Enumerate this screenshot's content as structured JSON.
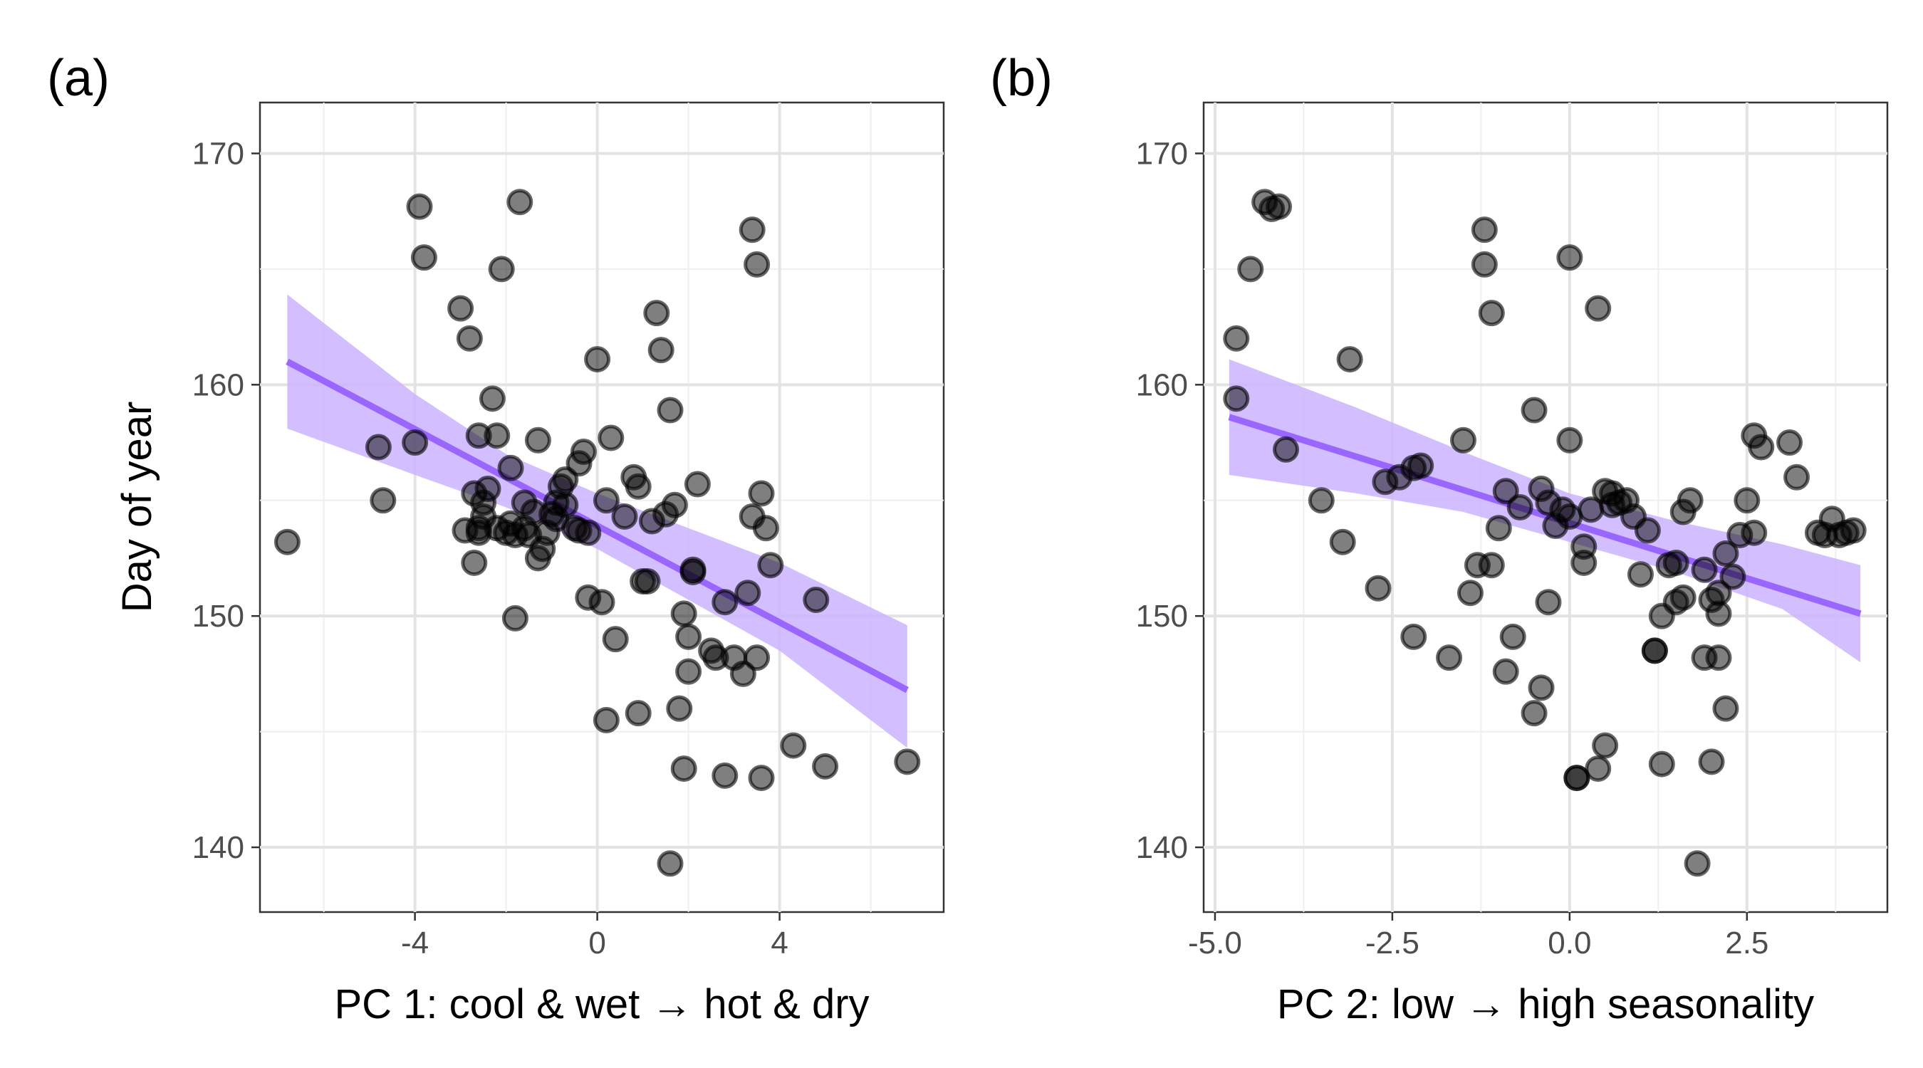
{
  "chart_data": [
    {
      "type": "scatter",
      "panel_label": "(a)",
      "xlabel": "PC 1: cool & wet → hot & dry",
      "ylabel": "Day of year",
      "xlim": [
        -7.4,
        7.6
      ],
      "ylim": [
        137.2,
        172.2
      ],
      "x_ticks": [
        -4,
        0,
        4
      ],
      "x_tick_labels": [
        "-4",
        "0",
        "4"
      ],
      "y_ticks": [
        140,
        150,
        160,
        170
      ],
      "y_tick_labels": [
        "140",
        "150",
        "160",
        "170"
      ],
      "grid": true,
      "colors": {
        "points": "#000000",
        "fit_line": "#9966ff",
        "ribbon": "#cbb3ff"
      },
      "fit": {
        "x": [
          -6.8,
          6.8
        ],
        "y": [
          161.0,
          146.8
        ]
      },
      "ribbon": {
        "x": [
          -6.8,
          -4,
          -2,
          0,
          2,
          4,
          6.8
        ],
        "lower": [
          158.1,
          156.1,
          154.7,
          152.9,
          150.7,
          148.5,
          144.3
        ],
        "upper": [
          163.9,
          159.6,
          157.0,
          155.3,
          153.8,
          152.3,
          149.6
        ]
      },
      "points": {
        "x": [
          -6.8,
          -4.8,
          -4.7,
          -4.0,
          -3.8,
          -3.9,
          -3.0,
          -2.8,
          -2.7,
          -2.6,
          -2.6,
          -2.5,
          -2.4,
          -2.3,
          -2.1,
          -1.9,
          -1.8,
          -1.7,
          -1.5,
          -1.3,
          -1.2,
          -1.0,
          -0.9,
          -0.8,
          -0.7,
          -0.5,
          -0.4,
          -0.3,
          -0.2,
          0.0,
          0.1,
          0.3,
          0.6,
          0.8,
          0.9,
          1.1,
          1.3,
          1.4,
          1.5,
          1.6,
          1.8,
          1.9,
          2.0,
          2.1,
          2.2,
          2.5,
          2.8,
          3.2,
          3.4,
          3.5,
          3.6,
          3.7,
          3.8,
          4.3,
          4.8,
          5.0,
          6.8,
          -2.6,
          -2.5,
          -1.9,
          -1.6,
          -1.3,
          -0.9,
          -2.9,
          -2.7,
          -2.2,
          -2.0,
          -1.8,
          -1.6,
          -1.4,
          -1.1,
          -0.7,
          -0.4,
          0.2,
          1.2,
          1.9,
          2.0,
          2.1,
          2.6,
          3.0,
          3.3,
          3.4,
          3.5,
          3.6,
          0.9,
          1.0,
          1.6,
          1.7,
          2.8,
          -0.2,
          0.4,
          0.2,
          -2.2
        ],
        "y": [
          153.2,
          157.3,
          155.0,
          157.5,
          165.5,
          167.7,
          163.3,
          162.0,
          152.3,
          153.8,
          157.8,
          154.9,
          155.5,
          159.4,
          165.0,
          156.4,
          149.9,
          167.9,
          153.5,
          157.6,
          152.9,
          154.4,
          154.9,
          155.6,
          155.9,
          153.8,
          156.6,
          157.1,
          153.6,
          161.1,
          150.6,
          157.7,
          154.3,
          156.0,
          145.8,
          151.5,
          163.1,
          161.5,
          154.4,
          158.9,
          146.0,
          143.4,
          149.1,
          152.0,
          155.7,
          148.5,
          143.1,
          147.5,
          166.7,
          165.2,
          155.3,
          153.8,
          152.2,
          144.4,
          150.7,
          143.5,
          143.7,
          153.6,
          154.3,
          154.0,
          153.8,
          152.5,
          154.2,
          153.7,
          155.3,
          153.8,
          153.6,
          153.5,
          154.9,
          154.5,
          153.6,
          154.8,
          153.7,
          155.0,
          154.1,
          150.1,
          147.6,
          151.9,
          148.2,
          148.2,
          151.0,
          154.3,
          148.2,
          143.0,
          155.6,
          151.5,
          139.3,
          154.8,
          150.6,
          150.8,
          149.0,
          145.5,
          157.8
        ]
      }
    },
    {
      "type": "scatter",
      "panel_label": "(b)",
      "xlabel": "PC 2: low → high seasonality",
      "ylabel": "",
      "xlim": [
        -5.16,
        4.48
      ],
      "ylim": [
        137.2,
        172.2
      ],
      "x_ticks": [
        -5.0,
        -2.5,
        0.0,
        2.5
      ],
      "x_tick_labels": [
        "-5.0",
        "-2.5",
        "0.0",
        "2.5"
      ],
      "y_ticks": [
        140,
        150,
        160,
        170
      ],
      "y_tick_labels": [
        "140",
        "150",
        "160",
        "170"
      ],
      "grid": true,
      "colors": {
        "points": "#000000",
        "fit_line": "#9966ff",
        "ribbon": "#cbb3ff"
      },
      "fit": {
        "x": [
          -4.8,
          4.1
        ],
        "y": [
          158.6,
          150.1
        ]
      },
      "ribbon": {
        "x": [
          -4.8,
          -3,
          -1.5,
          0,
          1.5,
          3,
          4.1
        ],
        "lower": [
          156.1,
          155.3,
          154.5,
          153.2,
          151.9,
          150.3,
          148.0
        ],
        "upper": [
          161.1,
          159.0,
          157.1,
          155.3,
          154.1,
          153.1,
          152.2
        ]
      },
      "points": {
        "x": [
          -4.3,
          -4.2,
          -4.1,
          -4.5,
          -4.7,
          -4.7,
          -4.0,
          -3.5,
          -3.2,
          -3.1,
          -2.7,
          -2.4,
          -2.6,
          -2.2,
          -2.1,
          -1.7,
          -1.5,
          -1.4,
          -1.3,
          -1.2,
          -1.2,
          -1.1,
          -1.1,
          -1.0,
          -0.9,
          -0.9,
          -0.8,
          -0.5,
          -0.4,
          -0.7,
          -0.5,
          -0.4,
          -0.3,
          -0.2,
          -0.1,
          0.0,
          0.0,
          0.1,
          0.1,
          0.2,
          0.4,
          0.4,
          0.5,
          0.6,
          0.7,
          0.8,
          0.9,
          1.0,
          1.1,
          1.2,
          1.3,
          1.3,
          1.4,
          1.5,
          1.6,
          1.7,
          1.8,
          1.9,
          2.0,
          2.1,
          2.1,
          2.2,
          2.3,
          2.4,
          2.5,
          2.6,
          2.6,
          2.7,
          3.1,
          3.2,
          3.5,
          3.6,
          3.7,
          3.8,
          3.9,
          4.0,
          1.6,
          2.0,
          1.2,
          1.9,
          -2.2,
          0.2,
          0.3,
          -0.3,
          0.0,
          0.5,
          2.1,
          2.2,
          1.5,
          0.6
        ],
        "y": [
          167.9,
          167.6,
          167.7,
          165.0,
          162.0,
          159.4,
          157.2,
          155.0,
          153.2,
          161.1,
          151.2,
          156.0,
          155.8,
          156.4,
          156.5,
          148.2,
          157.6,
          151.0,
          152.2,
          165.2,
          166.7,
          152.2,
          163.1,
          153.8,
          155.4,
          147.6,
          149.1,
          145.8,
          146.9,
          154.7,
          158.9,
          155.5,
          150.6,
          153.9,
          154.6,
          157.6,
          165.5,
          143.0,
          143.0,
          152.3,
          143.4,
          163.3,
          144.4,
          155.3,
          154.9,
          155.0,
          154.3,
          151.8,
          153.7,
          148.5,
          150.0,
          143.6,
          152.2,
          150.6,
          154.5,
          155.0,
          139.3,
          152.0,
          143.7,
          148.2,
          150.1,
          146.0,
          151.7,
          153.5,
          155.0,
          153.6,
          157.8,
          157.3,
          157.5,
          156.0,
          153.6,
          153.5,
          154.2,
          153.5,
          153.6,
          153.7,
          150.8,
          150.7,
          148.5,
          148.2,
          149.1,
          153.0,
          154.6,
          154.9,
          154.3,
          155.4,
          151.0,
          152.7,
          152.3,
          154.8
        ]
      }
    }
  ]
}
